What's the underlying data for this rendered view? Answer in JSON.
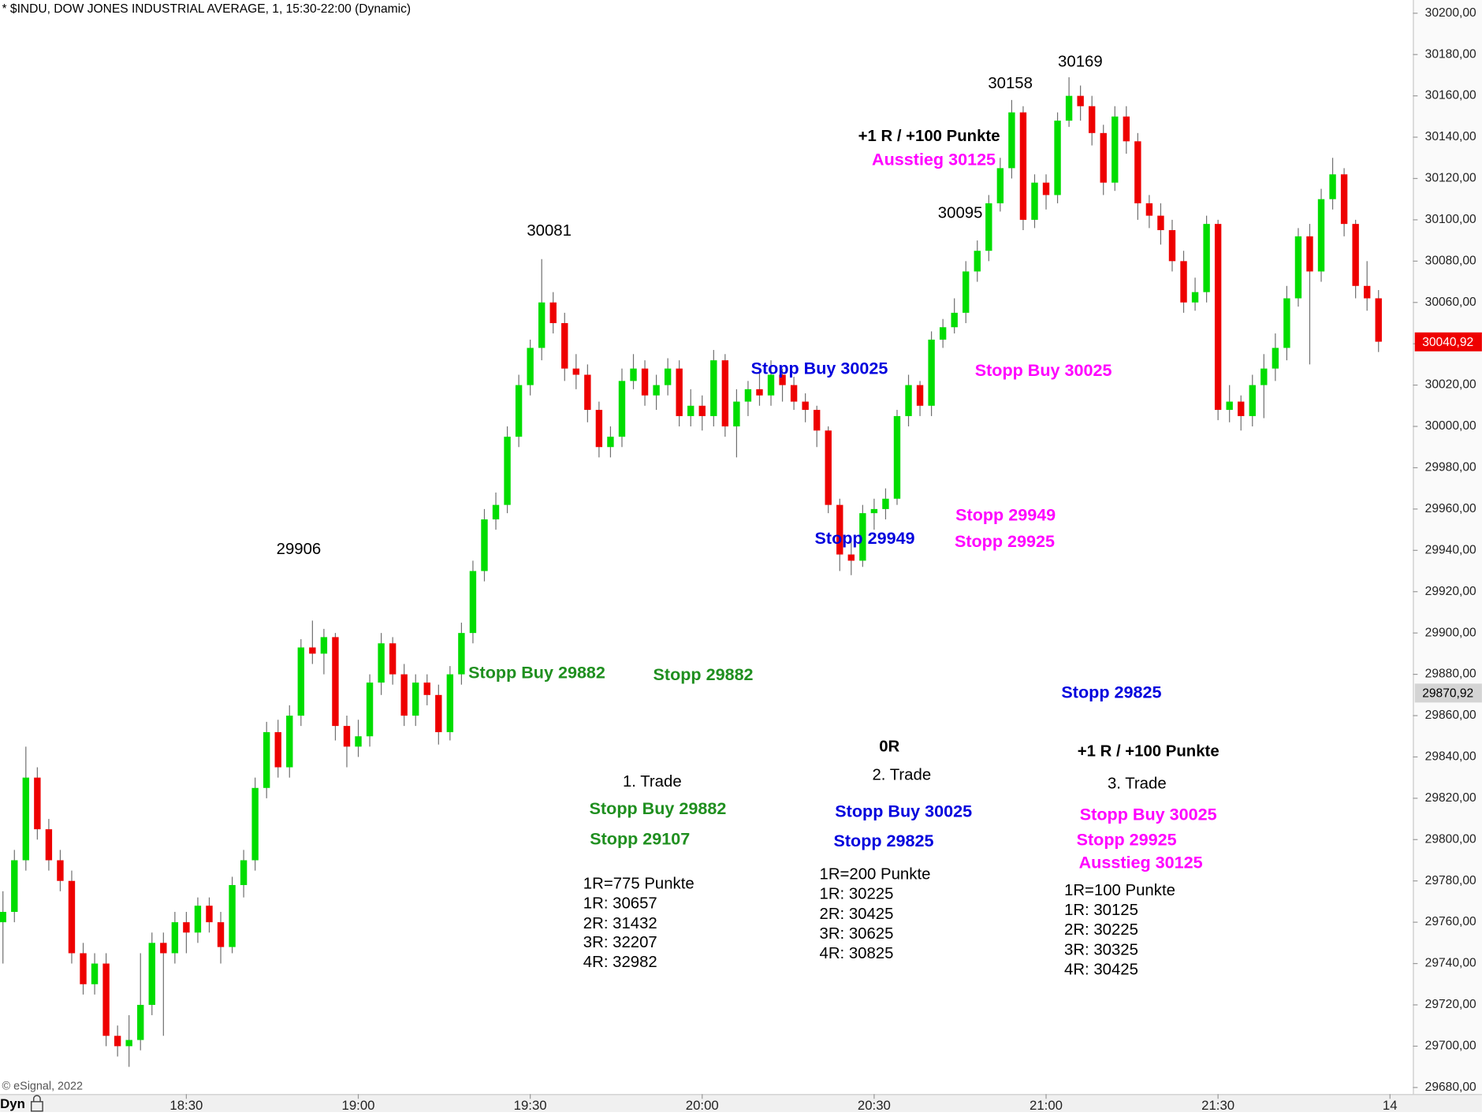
{
  "chart_data": {
    "type": "candlestick",
    "title": "* $INDU, DOW JONES INDUSTRIAL AVERAGE, 1, 15:30-22:00 (Dynamic)",
    "x": [
      "17:58",
      "18:00",
      "18:02",
      "18:04",
      "18:06",
      "18:08",
      "18:10",
      "18:12",
      "18:14",
      "18:16",
      "18:18",
      "18:20",
      "18:22",
      "18:24",
      "18:26",
      "18:28",
      "18:30",
      "18:32",
      "18:34",
      "18:36",
      "18:38",
      "18:40",
      "18:42",
      "18:44",
      "18:46",
      "18:48",
      "18:50",
      "18:52",
      "18:54",
      "18:56",
      "18:58",
      "19:00",
      "19:02",
      "19:04",
      "19:06",
      "19:08",
      "19:10",
      "19:12",
      "19:14",
      "19:16",
      "19:18",
      "19:20",
      "19:22",
      "19:24",
      "19:26",
      "19:28",
      "19:30",
      "19:32",
      "19:34",
      "19:36",
      "19:38",
      "19:40",
      "19:42",
      "19:44",
      "19:46",
      "19:48",
      "19:50",
      "19:52",
      "19:54",
      "19:56",
      "19:58",
      "20:00",
      "20:02",
      "20:04",
      "20:06",
      "20:08",
      "20:10",
      "20:12",
      "20:14",
      "20:16",
      "20:18",
      "20:20",
      "20:22",
      "20:24",
      "20:26",
      "20:28",
      "20:30",
      "20:32",
      "20:34",
      "20:36",
      "20:38",
      "20:40",
      "20:42",
      "20:44",
      "20:46",
      "20:48",
      "20:50",
      "20:52",
      "20:54",
      "20:56",
      "20:58",
      "21:00",
      "21:02",
      "21:04",
      "21:06",
      "21:08",
      "21:10",
      "21:12",
      "21:14",
      "21:16",
      "21:18",
      "21:20",
      "21:22",
      "21:24",
      "21:26",
      "21:28",
      "21:30",
      "21:32",
      "21:34",
      "21:36",
      "21:38",
      "21:40",
      "21:42",
      "21:44",
      "21:46",
      "21:48",
      "21:50",
      "21:52",
      "21:54",
      "21:56",
      "21:58"
    ],
    "open": [
      29760,
      29765,
      29790,
      29830,
      29805,
      29790,
      29780,
      29745,
      29730,
      29740,
      29705,
      29700,
      29703,
      29720,
      29750,
      29745,
      29760,
      29755,
      29768,
      29760,
      29748,
      29778,
      29790,
      29825,
      29852,
      29835,
      29860,
      29893,
      29890,
      29898,
      29855,
      29845,
      29850,
      29876,
      29895,
      29880,
      29860,
      29876,
      29870,
      29852,
      29880,
      29900,
      29930,
      29955,
      29962,
      29995,
      30020,
      30038,
      30060,
      30050,
      30028,
      30025,
      30008,
      29990,
      29995,
      30022,
      30028,
      30015,
      30020,
      30028,
      30005,
      30010,
      30005,
      30032,
      30000,
      30012,
      30018,
      30015,
      30025,
      30020,
      30012,
      30008,
      29998,
      29962,
      29938,
      29935,
      29958,
      29960,
      29965,
      30005,
      30020,
      30010,
      30042,
      30048,
      30055,
      30075,
      30085,
      30108,
      30125,
      30152,
      30100,
      30118,
      30112,
      30148,
      30160,
      30155,
      30142,
      30118,
      30150,
      30138,
      30108,
      30102,
      30095,
      30080,
      30060,
      30065,
      30098,
      30008,
      30012,
      30005,
      30020,
      30028,
      30038,
      30062,
      30092,
      30075,
      30110,
      30122,
      30098,
      30068,
      30062
    ],
    "high": [
      29775,
      29795,
      29845,
      29835,
      29810,
      29795,
      29785,
      29750,
      29745,
      29745,
      29710,
      29715,
      29745,
      29755,
      29755,
      29765,
      29765,
      29772,
      29772,
      29765,
      29782,
      29795,
      29830,
      29857,
      29858,
      29865,
      29897,
      29906,
      29902,
      29900,
      29860,
      29858,
      29880,
      29900,
      29898,
      29885,
      29880,
      29880,
      29875,
      29884,
      29905,
      29935,
      29960,
      29968,
      30000,
      30025,
      30042,
      30081,
      30065,
      30055,
      30035,
      30030,
      30012,
      30000,
      30028,
      30035,
      30032,
      30025,
      30033,
      30032,
      30018,
      30015,
      30037,
      30035,
      30018,
      30022,
      30028,
      30032,
      30028,
      30024,
      30016,
      30010,
      30000,
      29965,
      29945,
      29962,
      29965,
      29970,
      30008,
      30025,
      30022,
      30046,
      30052,
      30062,
      30080,
      30090,
      30112,
      30130,
      30158,
      30155,
      30122,
      30122,
      30152,
      30169,
      30165,
      30160,
      30146,
      30155,
      30155,
      30142,
      30112,
      30108,
      30100,
      30085,
      30072,
      30102,
      30100,
      30020,
      30015,
      30025,
      30035,
      30045,
      30068,
      30096,
      30098,
      30115,
      30130,
      30125,
      30100,
      30080,
      30066
    ],
    "low": [
      29740,
      29760,
      29785,
      29800,
      29785,
      29775,
      29740,
      29725,
      29725,
      29700,
      29695,
      29690,
      29698,
      29715,
      29705,
      29740,
      29745,
      29750,
      29755,
      29740,
      29745,
      29772,
      29785,
      29820,
      29830,
      29830,
      29855,
      29885,
      29880,
      29848,
      29835,
      29840,
      29845,
      29870,
      29875,
      29855,
      29855,
      29865,
      29846,
      29848,
      29875,
      29895,
      29925,
      29950,
      29958,
      29990,
      30015,
      30032,
      30045,
      30022,
      30018,
      30002,
      29985,
      29985,
      29990,
      30018,
      30010,
      30008,
      30015,
      30000,
      30000,
      29998,
      30000,
      29995,
      29985,
      30005,
      30010,
      30010,
      30012,
      30008,
      30002,
      29990,
      29958,
      29930,
      29928,
      29932,
      29950,
      29955,
      29962,
      30000,
      30005,
      30005,
      30038,
      30045,
      30050,
      30070,
      30080,
      30104,
      30120,
      30095,
      30096,
      30105,
      30108,
      30145,
      30148,
      30136,
      30112,
      30114,
      30132,
      30100,
      30096,
      30088,
      30075,
      30055,
      30056,
      30060,
      30003,
      30002,
      29998,
      30000,
      30004,
      30022,
      30032,
      30058,
      30030,
      30070,
      30105,
      30092,
      30062,
      30056,
      30036
    ],
    "close": [
      29765,
      29790,
      29830,
      29805,
      29790,
      29780,
      29745,
      29730,
      29740,
      29705,
      29700,
      29703,
      29720,
      29750,
      29745,
      29760,
      29755,
      29768,
      29760,
      29748,
      29778,
      29790,
      29825,
      29852,
      29835,
      29860,
      29893,
      29890,
      29898,
      29855,
      29845,
      29850,
      29876,
      29895,
      29880,
      29860,
      29876,
      29870,
      29852,
      29880,
      29900,
      29930,
      29955,
      29962,
      29995,
      30020,
      30038,
      30060,
      30050,
      30028,
      30025,
      30008,
      29990,
      29995,
      30022,
      30028,
      30015,
      30020,
      30028,
      30005,
      30010,
      30005,
      30032,
      30000,
      30012,
      30018,
      30015,
      30025,
      30020,
      30012,
      30008,
      29998,
      29962,
      29938,
      29935,
      29958,
      29960,
      29965,
      30005,
      30020,
      30010,
      30042,
      30048,
      30055,
      30075,
      30085,
      30108,
      30125,
      30152,
      30100,
      30118,
      30112,
      30148,
      30160,
      30155,
      30142,
      30118,
      30150,
      30138,
      30108,
      30102,
      30095,
      30080,
      30060,
      30065,
      30098,
      30008,
      30012,
      30005,
      30020,
      30028,
      30038,
      30062,
      30092,
      30075,
      30110,
      30122,
      30098,
      30068,
      30062,
      30041
    ],
    "up_color": "#00dd00",
    "down_color": "#ee0000",
    "wick_color": "#707070",
    "xlim": [
      "17:58",
      "22:04"
    ],
    "xticks": [
      "18:30",
      "19:00",
      "19:30",
      "20:00",
      "20:30",
      "21:00",
      "21:30",
      {
        "value": "22:00",
        "label": "14"
      }
    ],
    "ylim": [
      29676.8,
      30206.4
    ],
    "yticks": [
      {
        "value": 29680,
        "label": "29680,00"
      },
      {
        "value": 29700,
        "label": "29700,00"
      },
      {
        "value": 29720,
        "label": "29720,00"
      },
      {
        "value": 29740,
        "label": "29740,00"
      },
      {
        "value": 29760,
        "label": "29760,00"
      },
      {
        "value": 29780,
        "label": "29780,00"
      },
      {
        "value": 29800,
        "label": "29800,00"
      },
      {
        "value": 29820,
        "label": "29820,00"
      },
      {
        "value": 29840,
        "label": "29840,00"
      },
      {
        "value": 29860,
        "label": "29860,00"
      },
      {
        "value": 29880,
        "label": "29880,00"
      },
      {
        "value": 29900,
        "label": "29900,00"
      },
      {
        "value": 29920,
        "label": "29920,00"
      },
      {
        "value": 29940,
        "label": "29940,00"
      },
      {
        "value": 29960,
        "label": "29960,00"
      },
      {
        "value": 29980,
        "label": "29980,00"
      },
      {
        "value": 30000,
        "label": "30000,00"
      },
      {
        "value": 30020,
        "label": "30020,00"
      },
      {
        "value": 30040,
        "label": "30040,00"
      },
      {
        "value": 30060,
        "label": "30060,00"
      },
      {
        "value": 30080,
        "label": "30080,00"
      },
      {
        "value": 30100,
        "label": "30100,00"
      },
      {
        "value": 30120,
        "label": "30120,00"
      },
      {
        "value": 30140,
        "label": "30140,00"
      },
      {
        "value": 30160,
        "label": "30160,00"
      },
      {
        "value": 30180,
        "label": "30180,00"
      },
      {
        "value": 30200,
        "label": "30200,00"
      }
    ],
    "price_markers": [
      {
        "value": 30040.92,
        "label": "30040,92",
        "color": "#ee0000"
      },
      {
        "value": 29870.92,
        "label": "29870,92",
        "color": "#d4d4d4"
      }
    ],
    "annotations": [
      {
        "text": "30081",
        "color": "#000000"
      },
      {
        "text": "29906",
        "color": "#000000"
      },
      {
        "text": "30095",
        "color": "#000000"
      },
      {
        "text": "30158",
        "color": "#000000"
      },
      {
        "text": "30169",
        "color": "#000000"
      },
      {
        "text": "+1 R / +100 Punkte",
        "color": "#000000"
      },
      {
        "text": "Ausstieg 30125",
        "color": "#ff00ff"
      },
      {
        "text": "Stopp Buy 30025",
        "color": "#0000dd"
      },
      {
        "text": "Stopp Buy 30025",
        "color": "#ff00ff"
      },
      {
        "text": "Stopp 29949",
        "color": "#ff00ff"
      },
      {
        "text": "Stopp 29925",
        "color": "#ff00ff"
      },
      {
        "text": "Stopp 29949",
        "color": "#0000dd"
      },
      {
        "text": "Stopp Buy 29882",
        "color": "#1f8f1f"
      },
      {
        "text": "Stopp 29882",
        "color": "#1f8f1f"
      },
      {
        "text": "Stopp 29825",
        "color": "#0000dd"
      },
      {
        "text": "0R",
        "color": "#000000"
      },
      {
        "text": "+1 R / +100 Punkte",
        "color": "#000000"
      },
      {
        "text": "1. Trade",
        "color": "#000000"
      },
      {
        "text": "2. Trade",
        "color": "#000000"
      },
      {
        "text": "3. Trade",
        "color": "#000000"
      },
      {
        "text": "Stopp Buy 29882",
        "color": "#1f8f1f"
      },
      {
        "text": "Stopp 29107",
        "color": "#1f8f1f"
      },
      {
        "text": "Stopp Buy 30025",
        "color": "#0000dd"
      },
      {
        "text": "Stopp 29825",
        "color": "#0000dd"
      },
      {
        "text": "Stopp Buy 30025",
        "color": "#ff00ff"
      },
      {
        "text": "Stopp 29925",
        "color": "#ff00ff"
      },
      {
        "text": "Ausstieg 30125",
        "color": "#ff00ff"
      },
      {
        "text": "1R=775 Punkte",
        "color": "#000000"
      },
      {
        "text": "1R: 30657",
        "color": "#000000"
      },
      {
        "text": "2R: 31432",
        "color": "#000000"
      },
      {
        "text": "3R: 32207",
        "color": "#000000"
      },
      {
        "text": "4R: 32982",
        "color": "#000000"
      },
      {
        "text": "1R=200 Punkte",
        "color": "#000000"
      },
      {
        "text": "1R: 30225",
        "color": "#000000"
      },
      {
        "text": "2R: 30425",
        "color": "#000000"
      },
      {
        "text": "3R: 30625",
        "color": "#000000"
      },
      {
        "text": "4R: 30825",
        "color": "#000000"
      },
      {
        "text": "1R=100 Punkte",
        "color": "#000000"
      },
      {
        "text": "1R: 30125",
        "color": "#000000"
      },
      {
        "text": "2R: 30225",
        "color": "#000000"
      },
      {
        "text": "3R: 30325",
        "color": "#000000"
      },
      {
        "text": "4R: 30425",
        "color": "#000000"
      }
    ]
  },
  "footer": {
    "copyright": "© eSignal, 2022",
    "mode": "Dyn"
  }
}
